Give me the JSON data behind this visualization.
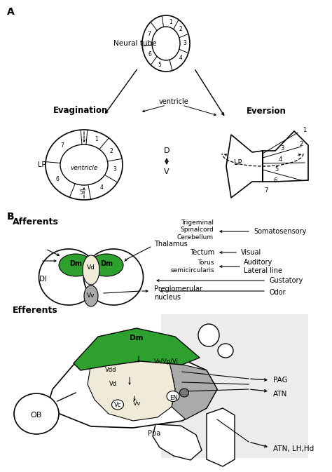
{
  "bg_color": "#ffffff",
  "green_color": "#2da02d",
  "beige_color": "#f0ead8",
  "gray_color": "#aaaaaa",
  "dark_gray": "#777777",
  "light_gray_bg": "#e0e0e0"
}
